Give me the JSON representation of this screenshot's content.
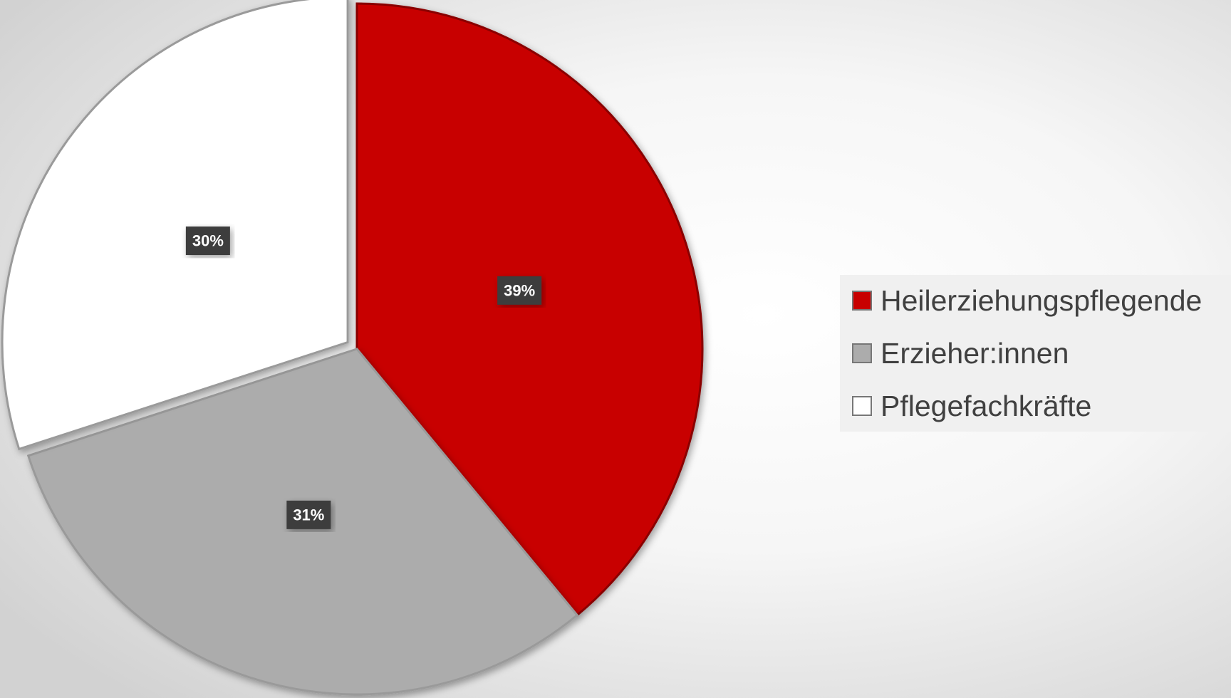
{
  "chart_data": {
    "type": "pie",
    "categories": [
      "Heilerziehungspflegende",
      "Erzieher:innen",
      "Pflegefachkräfte"
    ],
    "values": [
      39,
      31,
      30
    ],
    "value_labels": [
      "39%",
      "31%",
      "30%"
    ],
    "colors": [
      "#c80000",
      "#acacac",
      "#ffffff"
    ],
    "legend": "right"
  }
}
